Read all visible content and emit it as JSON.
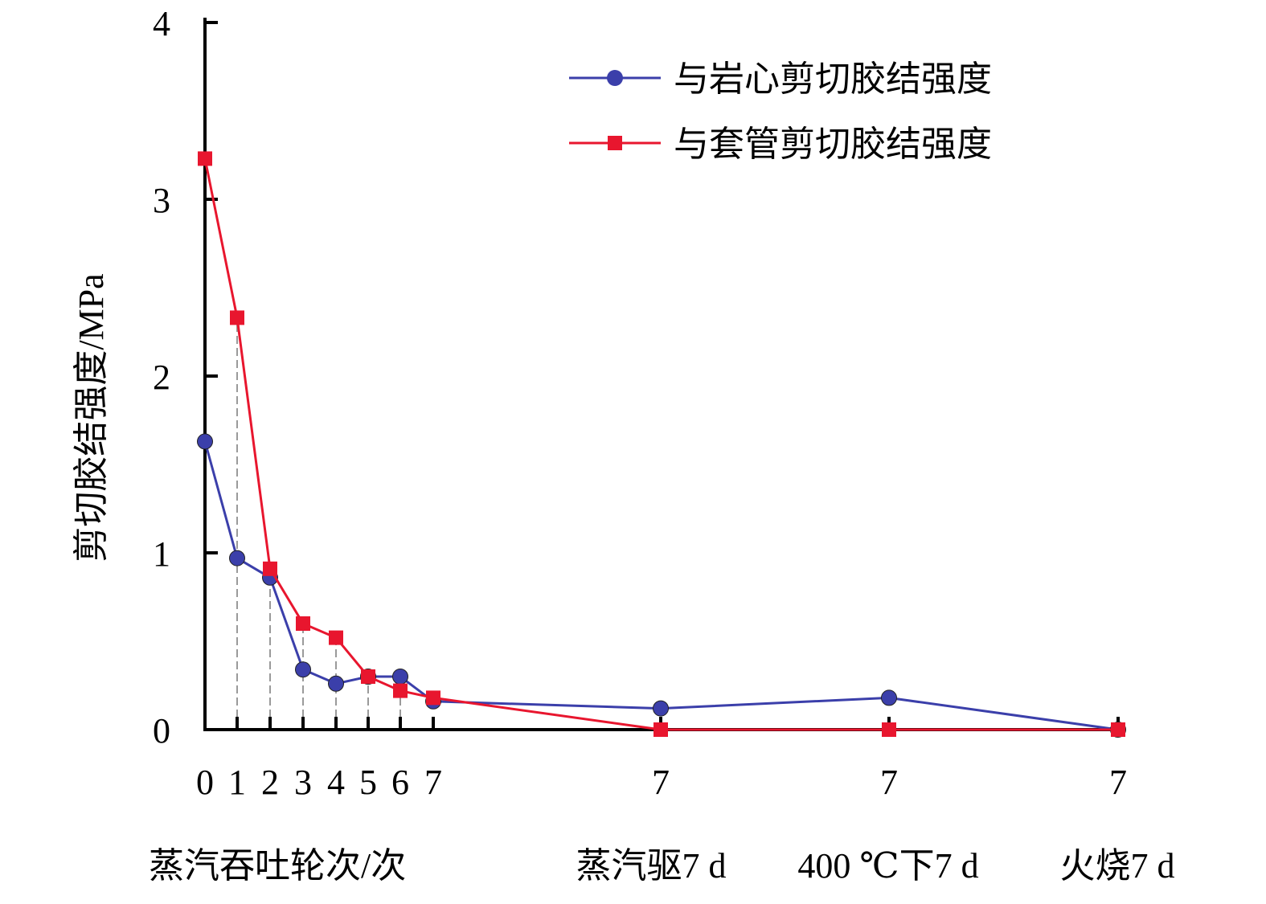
{
  "chart_data": {
    "type": "line",
    "ylabel": "剪切胶结强度/MPa",
    "ylim": [
      0,
      4
    ],
    "yticks": [
      "0",
      "1",
      "2",
      "3",
      "4"
    ],
    "x_tick_labels": [
      "0",
      "1",
      "2",
      "3",
      "4",
      "5",
      "6",
      "7",
      "7",
      "7",
      "7"
    ],
    "x_group_labels": [
      "蒸汽吞吐轮次/次",
      "蒸汽驱7 d",
      "400 ℃下7 d",
      "火烧7 d"
    ],
    "legend_position": "top-right",
    "grid": false,
    "series": [
      {
        "name": "与岩心剪切胶结强度",
        "color": "#3b3faa",
        "marker": "circle",
        "values": [
          1.63,
          0.97,
          0.86,
          0.34,
          0.26,
          0.3,
          0.3,
          0.16,
          0.12,
          0.18,
          0.0
        ]
      },
      {
        "name": "与套管剪切胶结强度",
        "color": "#e8162e",
        "marker": "square",
        "values": [
          3.23,
          2.33,
          0.91,
          0.6,
          0.52,
          0.3,
          0.22,
          0.18,
          0.0,
          0.0,
          0.0
        ]
      }
    ]
  }
}
